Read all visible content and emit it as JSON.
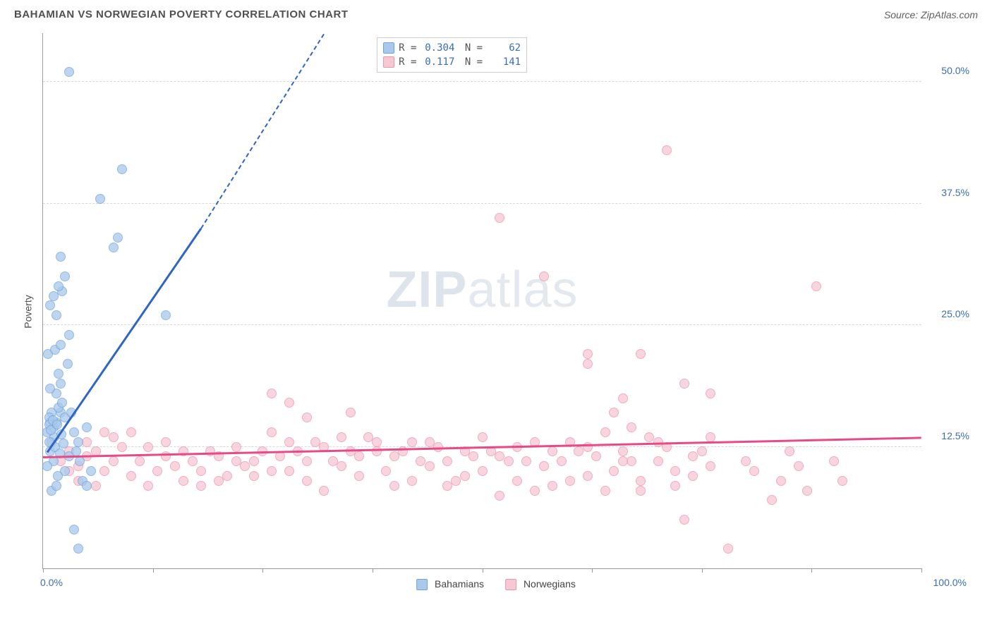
{
  "title": "BAHAMIAN VS NORWEGIAN POVERTY CORRELATION CHART",
  "source": "Source: ZipAtlas.com",
  "ylabel": "Poverty",
  "watermark_bold": "ZIP",
  "watermark_light": "atlas",
  "colors": {
    "bahamian_fill": "#a9c8ec",
    "bahamian_stroke": "#6fa3dd",
    "bahamian_line": "#2f66c3",
    "norwegian_fill": "#f6c8d4",
    "norwegian_stroke": "#eb94ab",
    "norwegian_line": "#e64b87",
    "axis_text": "#3b6db5",
    "grid": "#d8d8d8"
  },
  "chart": {
    "type": "scatter",
    "xlim": [
      0,
      100
    ],
    "ylim": [
      0,
      55
    ],
    "point_radius": 7,
    "yticks": [
      {
        "v": 12.5,
        "l": "12.5%"
      },
      {
        "v": 25,
        "l": "25.0%"
      },
      {
        "v": 37.5,
        "l": "37.5%"
      },
      {
        "v": 50,
        "l": "50.0%"
      }
    ],
    "xtick_positions": [
      0,
      12.5,
      25,
      37.5,
      50,
      62.5,
      75,
      87.5,
      100
    ],
    "xtick_labels": {
      "0": "0.0%",
      "100": "100.0%"
    }
  },
  "legend_labels": {
    "bahamians": "Bahamians",
    "norwegians": "Norwegians"
  },
  "stats": {
    "bahamian": {
      "r": "0.304",
      "n": "62"
    },
    "norwegian": {
      "r": "0.117",
      "n": "141"
    }
  },
  "trend_lines": {
    "bahamian": {
      "x1": 0.5,
      "y1": 12,
      "x2": 18,
      "y2": 35,
      "dash_to_x": 32,
      "dash_to_y": 55
    },
    "norwegian": {
      "x1": 0,
      "y1": 11.5,
      "x2": 100,
      "y2": 13.5
    }
  },
  "points": {
    "bahamian": [
      [
        0.5,
        14
      ],
      [
        0.8,
        15
      ],
      [
        1.0,
        16
      ],
      [
        1.2,
        14.5
      ],
      [
        0.7,
        15.5
      ],
      [
        1.5,
        15
      ],
      [
        2.0,
        16
      ],
      [
        1.0,
        13
      ],
      [
        0.8,
        12
      ],
      [
        1.2,
        11
      ],
      [
        0.5,
        10.5
      ],
      [
        2.5,
        10
      ],
      [
        3.0,
        11.5
      ],
      [
        1.8,
        16.5
      ],
      [
        2.2,
        17
      ],
      [
        1.5,
        18
      ],
      [
        0.8,
        18.5
      ],
      [
        2.0,
        19
      ],
      [
        3.5,
        14
      ],
      [
        1.0,
        8
      ],
      [
        1.5,
        8.5
      ],
      [
        4.0,
        13
      ],
      [
        2.5,
        15.5
      ],
      [
        3.2,
        16
      ],
      [
        1.8,
        20
      ],
      [
        2.8,
        21
      ],
      [
        0.6,
        22
      ],
      [
        1.4,
        22.5
      ],
      [
        2.0,
        23
      ],
      [
        3.0,
        24
      ],
      [
        1.5,
        26
      ],
      [
        0.8,
        27
      ],
      [
        1.2,
        28
      ],
      [
        2.2,
        28.5
      ],
      [
        1.8,
        29
      ],
      [
        2.5,
        30
      ],
      [
        0.7,
        14.8
      ],
      [
        1.1,
        15.2
      ],
      [
        8.0,
        33
      ],
      [
        8.5,
        34
      ],
      [
        2.0,
        32
      ],
      [
        9.0,
        41
      ],
      [
        6.5,
        38
      ],
      [
        3.0,
        51
      ],
      [
        14,
        26
      ],
      [
        4.5,
        9
      ],
      [
        5.0,
        8.5
      ],
      [
        3.5,
        4
      ],
      [
        4.0,
        2
      ],
      [
        5.5,
        10
      ],
      [
        1.3,
        13.5
      ],
      [
        0.9,
        14.2
      ],
      [
        1.6,
        14.8
      ],
      [
        2.1,
        13.8
      ],
      [
        1.4,
        12.5
      ],
      [
        1.9,
        11.8
      ],
      [
        0.7,
        13
      ],
      [
        3.8,
        12
      ],
      [
        4.2,
        11
      ],
      [
        5.0,
        14.5
      ],
      [
        1.7,
        9.5
      ],
      [
        2.3,
        12.8
      ]
    ],
    "norwegian": [
      [
        2,
        11
      ],
      [
        3,
        12
      ],
      [
        4,
        10.5
      ],
      [
        5,
        11.5
      ],
      [
        6,
        12
      ],
      [
        7,
        10
      ],
      [
        8,
        11
      ],
      [
        9,
        12.5
      ],
      [
        10,
        9.5
      ],
      [
        11,
        11
      ],
      [
        12,
        8.5
      ],
      [
        13,
        10
      ],
      [
        14,
        11.5
      ],
      [
        15,
        10.5
      ],
      [
        16,
        9
      ],
      [
        17,
        11
      ],
      [
        18,
        10
      ],
      [
        19,
        12
      ],
      [
        20,
        11.5
      ],
      [
        21,
        9.5
      ],
      [
        22,
        12.5
      ],
      [
        23,
        10.5
      ],
      [
        24,
        11
      ],
      [
        25,
        12
      ],
      [
        26,
        14
      ],
      [
        27,
        11.5
      ],
      [
        28,
        10
      ],
      [
        29,
        12
      ],
      [
        30,
        11
      ],
      [
        31,
        13
      ],
      [
        32,
        12.5
      ],
      [
        33,
        11
      ],
      [
        34,
        10.5
      ],
      [
        35,
        12
      ],
      [
        36,
        11.5
      ],
      [
        37,
        13.5
      ],
      [
        38,
        12
      ],
      [
        39,
        10
      ],
      [
        40,
        11.5
      ],
      [
        41,
        12
      ],
      [
        42,
        13
      ],
      [
        43,
        11
      ],
      [
        44,
        10.5
      ],
      [
        45,
        12.5
      ],
      [
        46,
        11
      ],
      [
        47,
        9
      ],
      [
        48,
        12
      ],
      [
        49,
        11.5
      ],
      [
        50,
        10
      ],
      [
        51,
        12
      ],
      [
        52,
        7.5
      ],
      [
        53,
        11
      ],
      [
        54,
        12.5
      ],
      [
        55,
        11
      ],
      [
        56,
        8
      ],
      [
        57,
        10.5
      ],
      [
        58,
        12
      ],
      [
        59,
        11
      ],
      [
        60,
        13
      ],
      [
        61,
        12
      ],
      [
        62,
        9.5
      ],
      [
        63,
        11.5
      ],
      [
        64,
        14
      ],
      [
        65,
        10
      ],
      [
        66,
        12
      ],
      [
        67,
        11
      ],
      [
        68,
        8
      ],
      [
        69,
        13.5
      ],
      [
        70,
        11
      ],
      [
        71,
        12.5
      ],
      [
        72,
        10
      ],
      [
        73,
        5
      ],
      [
        74,
        11.5
      ],
      [
        75,
        12
      ],
      [
        76,
        10.5
      ],
      [
        26,
        18
      ],
      [
        28,
        17
      ],
      [
        35,
        16
      ],
      [
        30,
        15.5
      ],
      [
        52,
        36
      ],
      [
        57,
        30
      ],
      [
        62,
        22
      ],
      [
        62,
        21
      ],
      [
        65,
        16
      ],
      [
        66,
        17.5
      ],
      [
        67,
        14.5
      ],
      [
        68,
        22
      ],
      [
        71,
        43
      ],
      [
        73,
        19
      ],
      [
        76,
        18
      ],
      [
        78,
        2
      ],
      [
        80,
        11
      ],
      [
        81,
        10
      ],
      [
        83,
        7
      ],
      [
        84,
        9
      ],
      [
        85,
        12
      ],
      [
        86,
        10.5
      ],
      [
        87,
        8
      ],
      [
        88,
        29
      ],
      [
        90,
        11
      ],
      [
        91,
        9
      ],
      [
        5,
        13
      ],
      [
        7,
        14
      ],
      [
        3,
        10
      ],
      [
        4,
        9
      ],
      [
        6,
        8.5
      ],
      [
        8,
        13.5
      ],
      [
        10,
        14
      ],
      [
        12,
        12.5
      ],
      [
        14,
        13
      ],
      [
        16,
        12
      ],
      [
        18,
        8.5
      ],
      [
        20,
        9
      ],
      [
        22,
        11
      ],
      [
        24,
        9.5
      ],
      [
        26,
        10
      ],
      [
        28,
        13
      ],
      [
        30,
        9
      ],
      [
        32,
        8
      ],
      [
        34,
        13.5
      ],
      [
        36,
        9.5
      ],
      [
        38,
        13
      ],
      [
        40,
        8.5
      ],
      [
        42,
        9
      ],
      [
        44,
        13
      ],
      [
        46,
        8.5
      ],
      [
        48,
        9.5
      ],
      [
        50,
        13.5
      ],
      [
        52,
        11.5
      ],
      [
        54,
        9
      ],
      [
        56,
        13
      ],
      [
        58,
        8.5
      ],
      [
        60,
        9
      ],
      [
        62,
        12.5
      ],
      [
        64,
        8
      ],
      [
        66,
        11
      ],
      [
        68,
        9
      ],
      [
        70,
        13
      ],
      [
        72,
        8.5
      ],
      [
        74,
        9.5
      ],
      [
        76,
        13.5
      ]
    ]
  }
}
